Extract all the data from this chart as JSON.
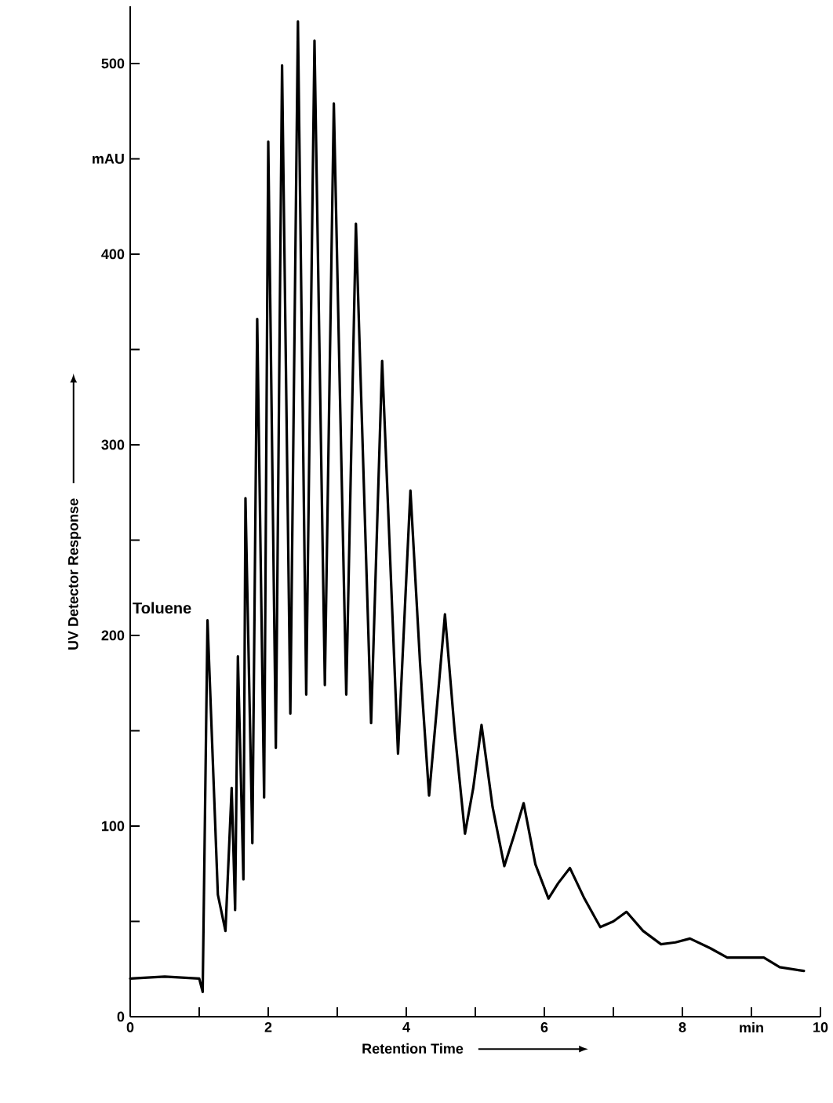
{
  "chart_data": {
    "type": "line",
    "xlabel": "Retention Time",
    "ylabel": "UV Detector Response",
    "xlim": [
      0,
      10
    ],
    "ylim": [
      0,
      530
    ],
    "xticks": [
      0,
      {
        "value": 1,
        "label": null
      },
      2,
      {
        "value": 3,
        "label": null
      },
      4,
      {
        "value": 5,
        "label": null
      },
      6,
      {
        "value": 7,
        "label": null
      },
      8,
      {
        "value": 9,
        "label": "min"
      },
      10
    ],
    "yticks": [
      0,
      {
        "value": 50,
        "label": null
      },
      100,
      {
        "value": 150,
        "label": null
      },
      200,
      {
        "value": 250,
        "label": null
      },
      300,
      {
        "value": 350,
        "label": null
      },
      400,
      {
        "value": 450,
        "label": "mAU"
      },
      500
    ],
    "marker": "none",
    "line_style": "solid",
    "annotations": [
      {
        "text": "Toluene",
        "x": 1.12,
        "y": 208
      }
    ],
    "series": [
      {
        "color": "#000000",
        "x": [
          0,
          0.5,
          1.0,
          1.05,
          1.12,
          1.27,
          1.38,
          1.47,
          1.52,
          1.56,
          1.64,
          1.67,
          1.77,
          1.84,
          1.94,
          2.0,
          2.11,
          2.2,
          2.32,
          2.43,
          2.55,
          2.67,
          2.82,
          2.95,
          3.13,
          3.27,
          3.49,
          3.65,
          3.88,
          4.06,
          4.2,
          4.33,
          4.45,
          4.56,
          4.7,
          4.85,
          4.97,
          5.09,
          5.25,
          5.42,
          5.56,
          5.7,
          5.87,
          6.06,
          6.2,
          6.37,
          6.58,
          6.81,
          7.0,
          7.19,
          7.43,
          7.69,
          7.9,
          8.11,
          8.4,
          8.65,
          9.0,
          9.18,
          9.41,
          9.76
        ],
        "values": [
          20,
          21,
          20,
          13,
          208,
          64,
          45,
          120,
          56,
          189,
          72,
          272,
          91,
          366,
          115,
          459,
          141,
          499,
          159,
          522,
          169,
          512,
          174,
          479,
          169,
          416,
          154,
          344,
          138,
          276,
          185,
          116,
          165,
          211,
          150,
          96,
          120,
          153,
          110,
          79,
          95,
          112,
          80,
          62,
          70,
          78,
          62,
          47,
          50,
          55,
          45,
          38,
          39,
          41,
          36,
          31,
          31,
          31,
          26,
          24
        ]
      }
    ]
  }
}
